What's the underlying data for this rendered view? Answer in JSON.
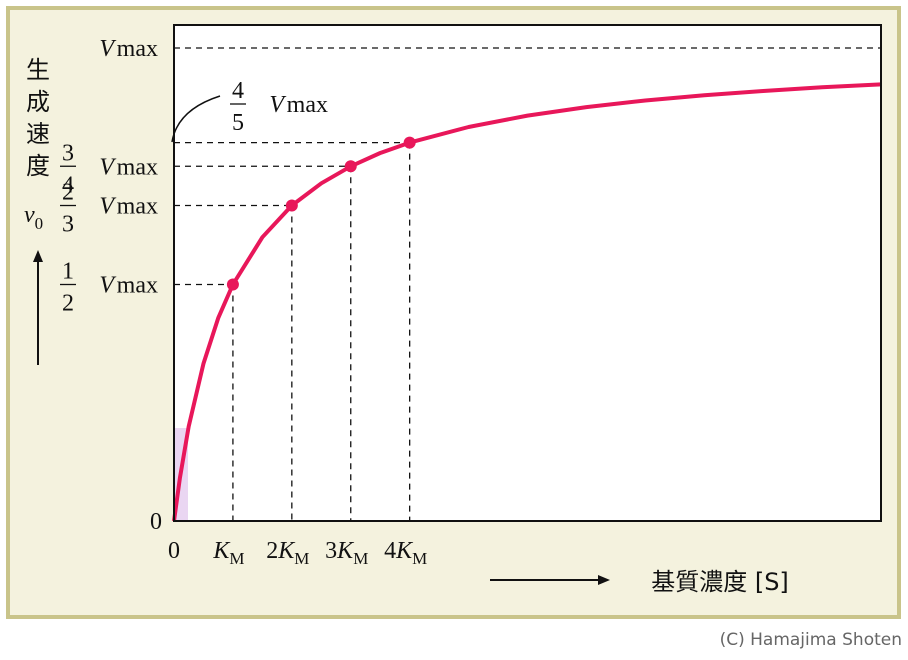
{
  "chart_data": {
    "type": "line",
    "y_axis_label": "生成速度",
    "y_axis_symbol": {
      "var": "v",
      "sub": "0"
    },
    "x_axis_label": "基質濃度 [S]",
    "annotation": {
      "num": "4",
      "den": "5",
      "var": "V",
      "sub": "max"
    },
    "credit": "(C) Hamajima Shoten",
    "xlim": [
      0,
      12
    ],
    "ylim": [
      0,
      1
    ],
    "xticks": [
      0,
      {
        "value": 1,
        "label": {
          "var": "K",
          "sub": "M"
        }
      },
      {
        "value": 2,
        "label": {
          "coef": "2",
          "var": "K",
          "sub": "M"
        }
      },
      {
        "value": 3,
        "label": {
          "coef": "3",
          "var": "K",
          "sub": "M"
        }
      },
      {
        "value": 4,
        "label": {
          "coef": "4",
          "var": "K",
          "sub": "M"
        }
      }
    ],
    "yticks": [
      0,
      {
        "value": 0.5,
        "label": {
          "num": "1",
          "den": "2",
          "var": "V",
          "sub": "max"
        }
      },
      {
        "value": 0.667,
        "label": {
          "num": "2",
          "den": "3",
          "var": "V",
          "sub": "max"
        }
      },
      {
        "value": 0.75,
        "label": {
          "num": "3",
          "den": "4",
          "var": "V",
          "sub": "max"
        }
      },
      {
        "value": 1,
        "label": {
          "var": "V",
          "sub": "max"
        }
      }
    ],
    "series": [
      {
        "color": "#e8175a",
        "x": [
          0,
          0.1,
          0.25,
          0.5,
          0.75,
          1,
          1.5,
          2,
          2.5,
          3,
          3.5,
          4,
          5,
          6,
          7,
          8,
          9,
          10,
          11,
          12
        ],
        "values": [
          0,
          0.091,
          0.2,
          0.333,
          0.429,
          0.5,
          0.6,
          0.667,
          0.714,
          0.75,
          0.778,
          0.8,
          0.833,
          0.857,
          0.875,
          0.889,
          0.9,
          0.909,
          0.917,
          0.923
        ]
      },
      {
        "color": "#e8175a",
        "x": [
          1,
          2,
          3,
          4
        ],
        "values": [
          0.5,
          0.667,
          0.75,
          0.8
        ]
      }
    ]
  }
}
